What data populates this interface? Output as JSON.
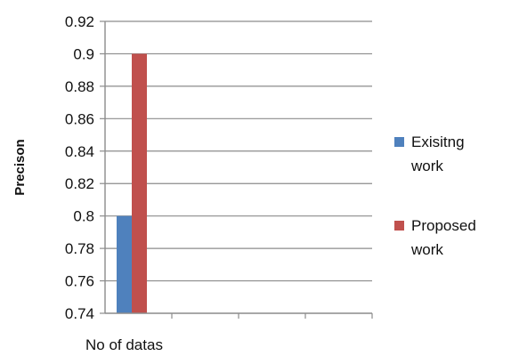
{
  "chart_data": {
    "type": "bar",
    "title": "",
    "xlabel": "No of datas",
    "ylabel": "Precison",
    "ylim": [
      0.74,
      0.92
    ],
    "yticks": [
      "0.74",
      "0.76",
      "0.78",
      "0.8",
      "0.82",
      "0.84",
      "0.86",
      "0.88",
      "0.9",
      "0.92"
    ],
    "categories": [
      ""
    ],
    "series": [
      {
        "name": "Exisitng work",
        "legend_lines": [
          "Exisitng",
          "work"
        ],
        "color": "#4f81bd",
        "values": [
          0.8
        ]
      },
      {
        "name": "Proposed work",
        "legend_lines": [
          "Proposed",
          "work"
        ],
        "color": "#c0504d",
        "values": [
          0.9
        ]
      }
    ],
    "grid": true,
    "legend_position": "right"
  }
}
